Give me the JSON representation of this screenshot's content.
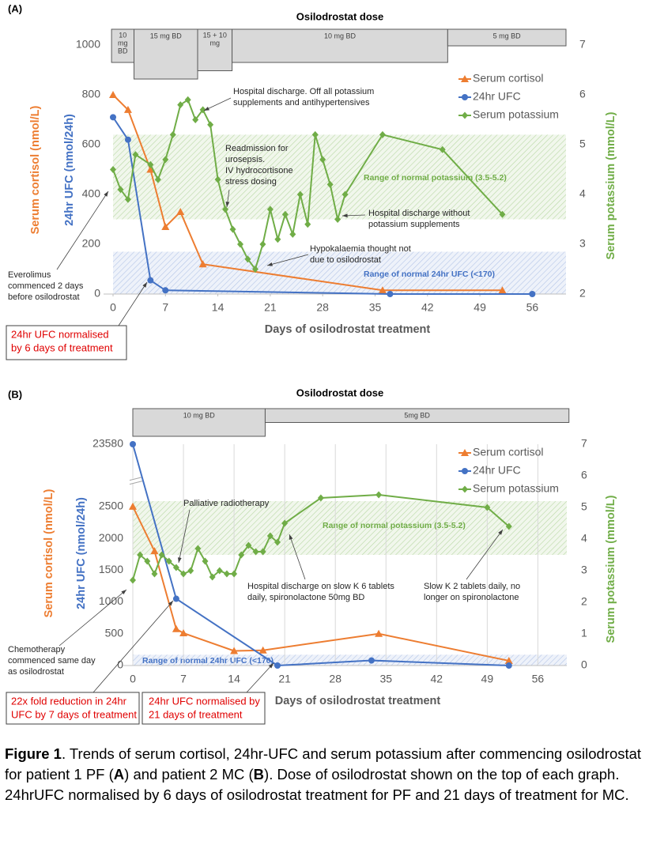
{
  "chart_data": [
    {
      "type": "line",
      "panel_label": "(A)",
      "title": "Osilodrostat dose",
      "x_label": "Days of osilodrostat treatment",
      "y_label": [
        "Serum cortisol (nmol/L)",
        "24hr UFC (nmol/24h)"
      ],
      "y2_label": "Serum potassium (mmol/L)",
      "xlim": [
        0,
        60.5
      ],
      "xticks": [
        0,
        7,
        14,
        21,
        28,
        35,
        42,
        49,
        56
      ],
      "ylim": [
        0,
        1000
      ],
      "yticks": [
        0,
        200,
        400,
        600,
        800,
        1000
      ],
      "y2lim": [
        2,
        7
      ],
      "y2ticks": [
        2,
        3,
        4,
        5,
        6,
        7
      ],
      "legend": "upper right",
      "grid": false,
      "series": [
        {
          "name": "Serum cortisol",
          "color": "#ed7d31",
          "marker": "triangle",
          "x": [
            0,
            2,
            5,
            7,
            9,
            12,
            36,
            52
          ],
          "values": [
            800,
            740,
            500,
            270,
            330,
            120,
            15,
            15
          ]
        },
        {
          "name": "24hr UFC",
          "color": "#4472c4",
          "marker": "circle",
          "x": [
            0,
            2,
            5,
            7,
            37,
            56
          ],
          "values": [
            710,
            620,
            55,
            15,
            0,
            0
          ]
        },
        {
          "name": "Serum potassium",
          "color": "#70ad47",
          "marker": "diamond",
          "axis": "y2",
          "x": [
            0,
            1,
            2,
            3,
            5,
            6,
            7,
            8,
            9,
            10,
            11,
            12,
            13,
            14,
            15,
            16,
            17,
            18,
            19,
            20,
            21,
            22,
            23,
            24,
            25,
            26,
            27,
            28,
            29,
            30,
            31,
            36,
            44,
            52
          ],
          "values": [
            4.5,
            4.1,
            3.9,
            4.8,
            4.6,
            4.3,
            4.7,
            5.2,
            5.8,
            5.9,
            5.5,
            5.7,
            5.4,
            4.3,
            3.7,
            3.3,
            3.0,
            2.7,
            2.5,
            3.0,
            3.7,
            3.1,
            3.6,
            3.2,
            4.0,
            3.4,
            5.2,
            4.7,
            4.2,
            3.5,
            4.0,
            5.2,
            4.9,
            3.6
          ]
        }
      ],
      "dose_bars": [
        {
          "label": [
            "10",
            "mg",
            "BD"
          ],
          "start": -0.2,
          "end": 2.8,
          "dose": 20
        },
        {
          "label": "15 mg BD",
          "start": 2.8,
          "end": 11.3,
          "dose": 30
        },
        {
          "label": [
            "15 + 10",
            "mg"
          ],
          "start": 11.3,
          "end": 15.9,
          "dose": 25
        },
        {
          "label": "10 mg BD",
          "start": 15.9,
          "end": 44.7,
          "dose": 20
        },
        {
          "label": "5 mg BD",
          "start": 44.7,
          "end": 60.5,
          "dose": 10
        }
      ],
      "bands": [
        {
          "label": "Range of normal potassium (3.5-5.2)",
          "axis": "y2",
          "from": 3.5,
          "to": 5.2,
          "color": "#70ad47"
        },
        {
          "label": "Range of normal 24hr UFC (<170)",
          "axis": "y",
          "from": 0,
          "to": 170,
          "color": "#4472c4"
        }
      ],
      "annotations": [
        {
          "text": [
            "Hospital discharge. Off all potassium",
            "supplements and antihypertensives"
          ]
        },
        {
          "text": [
            "Readmission for",
            "urosepsis.",
            "IV hydrocortisone",
            "stress dosing"
          ]
        },
        {
          "text": [
            "Hospital discharge without",
            "potassium supplements"
          ]
        },
        {
          "text": [
            "Hypokalaemia thought not",
            "due to osilodrostat"
          ]
        },
        {
          "text": [
            "Everolimus",
            "commenced 2 days",
            "before osilodrostat"
          ]
        },
        {
          "text": [
            "24hr UFC normalised",
            "by 6 days of treatment"
          ],
          "highlight": true
        }
      ]
    },
    {
      "type": "line",
      "panel_label": "(B)",
      "title": "Osilodrostat dose",
      "x_label": "Days of osilodrostat treatment",
      "y_label": [
        "Serum cortisol (nmol/L)",
        "24hr UFC (nmol/24h)"
      ],
      "y2_label": "Serum potassium (mmol/L)",
      "xlim": [
        0,
        60
      ],
      "xticks": [
        0,
        7,
        14,
        21,
        28,
        35,
        42,
        49,
        56
      ],
      "ylim": [
        0,
        23580
      ],
      "ybreak": [
        2900,
        23000
      ],
      "yticks": [
        0,
        500,
        1000,
        1500,
        2000,
        2500,
        23580
      ],
      "y2lim": [
        0,
        7
      ],
      "y2ticks": [
        0,
        1,
        2,
        3,
        4,
        5,
        6,
        7
      ],
      "legend": "upper right",
      "grid": "x",
      "series": [
        {
          "name": "Serum cortisol",
          "color": "#ed7d31",
          "marker": "triangle",
          "x": [
            0,
            3,
            6,
            7,
            14,
            18,
            34,
            52
          ],
          "values": [
            2500,
            1800,
            575,
            510,
            230,
            240,
            500,
            75
          ]
        },
        {
          "name": "24hr UFC",
          "color": "#4472c4",
          "marker": "circle",
          "x": [
            0,
            6,
            20,
            33,
            52
          ],
          "values": [
            23580,
            1050,
            0,
            80,
            0
          ]
        },
        {
          "name": "Serum potassium",
          "color": "#70ad47",
          "marker": "diamond",
          "axis": "y2",
          "x": [
            0,
            1,
            2,
            3,
            4,
            5,
            6,
            7,
            8,
            9,
            10,
            11,
            12,
            13,
            14,
            15,
            16,
            17,
            18,
            19,
            20,
            21,
            26,
            34,
            49,
            52
          ],
          "values": [
            2.7,
            3.5,
            3.3,
            2.9,
            3.5,
            3.3,
            3.1,
            2.9,
            3.0,
            3.7,
            3.3,
            2.8,
            3.0,
            2.9,
            2.9,
            3.5,
            3.8,
            3.6,
            3.6,
            4.1,
            3.9,
            4.5,
            5.3,
            5.4,
            5.0,
            4.4
          ]
        }
      ],
      "dose_bars": [
        {
          "label": "10 mg BD",
          "start": 0,
          "end": 18.3,
          "dose": 20
        },
        {
          "label": "5mg BD",
          "start": 18.3,
          "end": 60.3,
          "dose": 10
        }
      ],
      "bands": [
        {
          "label": "Range of normal potassium (3.5-5.2)",
          "axis": "y2",
          "from": 3.5,
          "to": 5.2,
          "color": "#70ad47"
        },
        {
          "label": "Range of normal 24hr UFC (<170)",
          "axis": "y",
          "from": 0,
          "to": 170,
          "color": "#4472c4"
        }
      ],
      "annotations": [
        {
          "text": [
            "Palliative radiotherapy"
          ]
        },
        {
          "text": [
            "Hospital discharge on slow K 6 tablets",
            "daily, spironolactone 50mg BD"
          ]
        },
        {
          "text": [
            "Slow K 2 tablets daily, no",
            "longer on spironolactone"
          ]
        },
        {
          "text": [
            "Chemotherapy",
            "commenced same day",
            "as osilodrostat"
          ]
        },
        {
          "text": [
            "22x fold reduction in 24hr",
            "UFC by 7 days of treatment"
          ],
          "highlight": true
        },
        {
          "text": [
            "24hr UFC normalised by",
            "21 days of treatment"
          ],
          "highlight": true
        }
      ]
    }
  ],
  "caption": [
    {
      "text": "Figure 1",
      "bold": true
    },
    {
      "text": ". Trends of serum cortisol, 24hr-UFC and serum potassium after commencing osilodrostat for patient 1 PF ("
    },
    {
      "text": "A",
      "bold": true
    },
    {
      "text": ") and patient 2 MC ("
    },
    {
      "text": "B",
      "bold": true
    },
    {
      "text": "). Dose of osilodrostat shown on the top of each graph. 24hrUFC normalised by 6 days of osilodrostat treatment for PF and 21 days of treatment for MC."
    }
  ]
}
